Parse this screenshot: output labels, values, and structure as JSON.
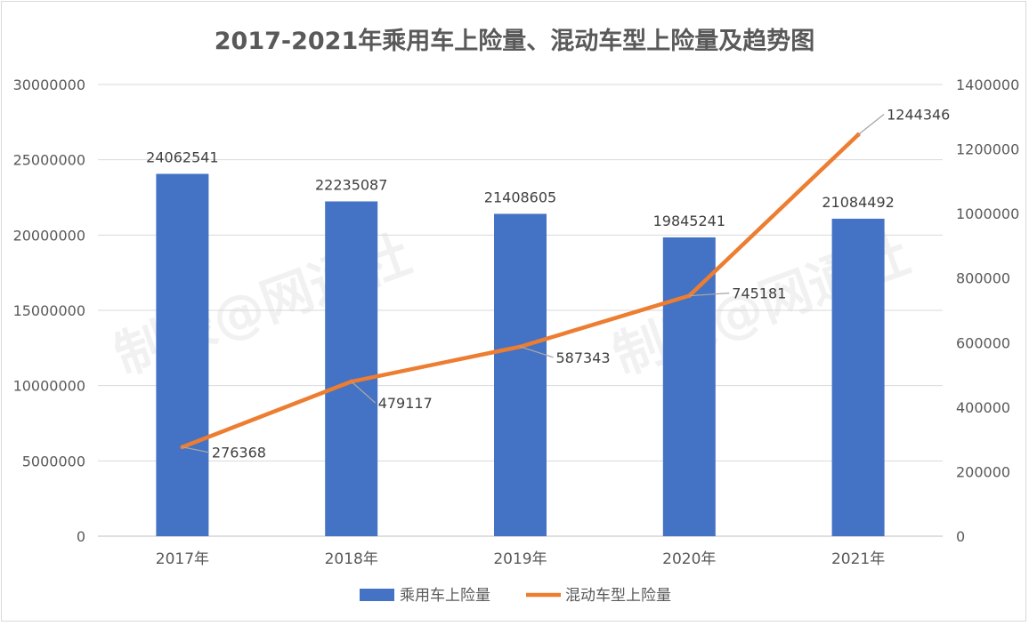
{
  "chart_data": {
    "type": "bar+line",
    "title": "2017-2021年乘用车上险量、混动车型上险量及趋势图",
    "categories": [
      "2017年",
      "2018年",
      "2019年",
      "2020年",
      "2021年"
    ],
    "series": [
      {
        "name": "乘用车上险量",
        "type": "bar",
        "axis": "left",
        "color": "#4472C4",
        "values": [
          24062541,
          22235087,
          21408605,
          19845241,
          21084492
        ],
        "labels": [
          "24062541",
          "22235087",
          "21408605",
          "19845241",
          "21084492"
        ]
      },
      {
        "name": "混动车型上险量",
        "type": "line",
        "axis": "right",
        "color": "#ED7D31",
        "values": [
          276368,
          479117,
          587343,
          745181,
          1244346
        ],
        "labels": [
          "276368",
          "479117",
          "587343",
          "745181",
          "1244346"
        ]
      }
    ],
    "left_axis": {
      "ylim": [
        0,
        30000000
      ],
      "ticks": [
        "0",
        "5000000",
        "10000000",
        "15000000",
        "20000000",
        "25000000",
        "30000000"
      ]
    },
    "right_axis": {
      "ylim": [
        0,
        1400000
      ],
      "ticks": [
        "0",
        "200000",
        "400000",
        "600000",
        "800000",
        "1000000",
        "1200000",
        "1400000"
      ]
    },
    "grid": true,
    "legend_position": "bottom",
    "watermark": "制表@网通社"
  }
}
